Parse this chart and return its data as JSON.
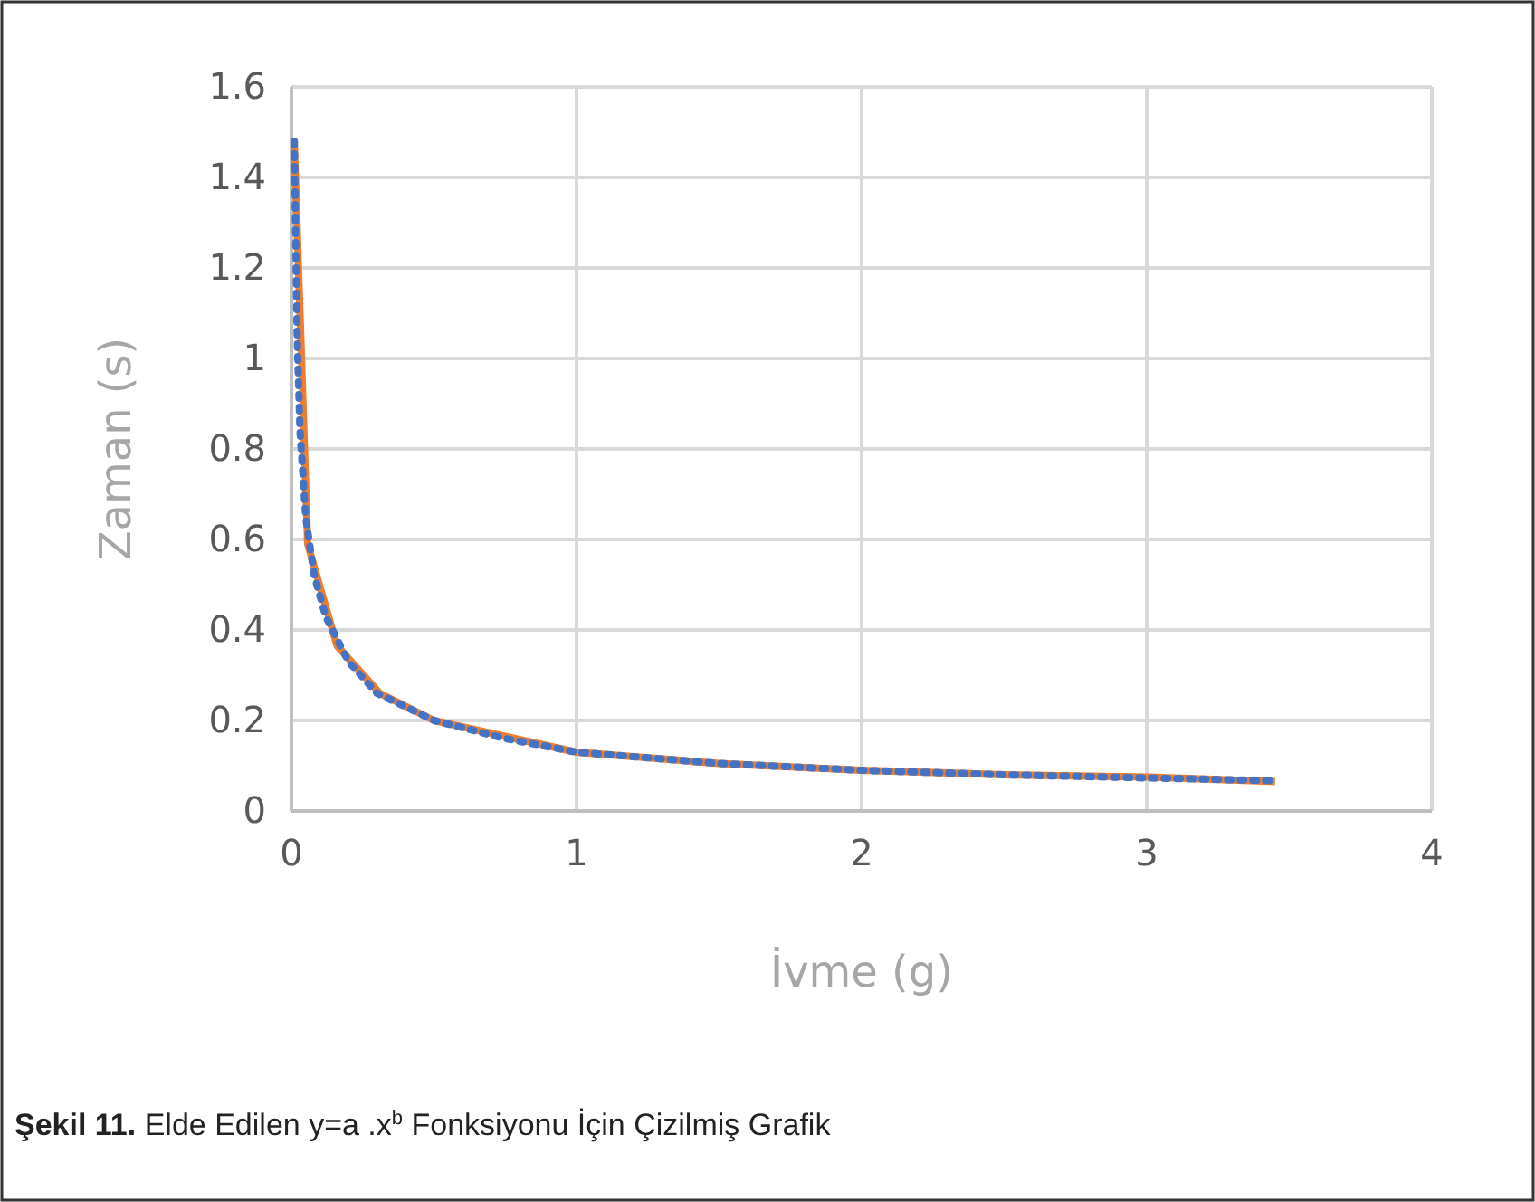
{
  "chart_data": {
    "type": "line",
    "xlabel": "İvme (g)",
    "ylabel": "Zaman (s)",
    "xlim": [
      0,
      4
    ],
    "xticks": [
      0,
      1,
      2,
      3,
      4
    ],
    "ylim": [
      0,
      1.6
    ],
    "yticks": [
      0,
      0.2,
      0.4,
      0.6,
      0.8,
      1,
      1.2,
      1.4,
      1.6
    ],
    "grid": true,
    "series": [
      {
        "color": "#ed7d31",
        "line_style": "solid",
        "x": [
          0.01,
          0.057,
          0.16,
          0.31,
          0.5,
          1,
          1.5,
          2,
          2.5,
          3,
          3.45
        ],
        "values": [
          1.48,
          0.59,
          0.365,
          0.26,
          0.2,
          0.13,
          0.105,
          0.09,
          0.08,
          0.075,
          0.065
        ]
      },
      {
        "color": "#4472c4",
        "line_style": "dotted",
        "x": [
          0.01,
          0.02,
          0.03,
          0.05,
          0.08,
          0.12,
          0.2,
          0.3,
          0.5,
          0.75,
          1,
          1.5,
          2,
          2.5,
          3,
          3.45
        ],
        "values": [
          1.48,
          1.05,
          0.84,
          0.65,
          0.52,
          0.43,
          0.33,
          0.26,
          0.2,
          0.16,
          0.13,
          0.105,
          0.09,
          0.08,
          0.073,
          0.067
        ]
      }
    ],
    "annotations": [
      "Şekil 11. Elde Edilen y=a .x$^{b}$ Fonksiyonu İçin Çizilmiş Grafik"
    ]
  }
}
